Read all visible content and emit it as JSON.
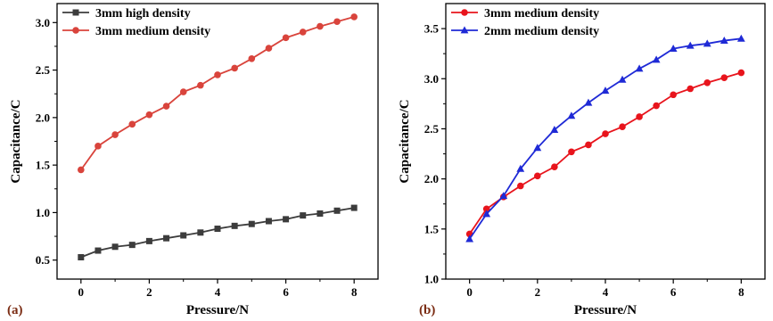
{
  "chart_data": [
    {
      "type": "line",
      "panel_label": "(a)",
      "xlabel": "Pressure/N",
      "ylabel": "Capacitance/C",
      "xlim": [
        -0.7,
        8.7
      ],
      "ylim": [
        0.3,
        3.2
      ],
      "xticks": [
        "0",
        "2",
        "4",
        "6",
        "8"
      ],
      "yticks": [
        "0.5",
        "1.0",
        "1.5",
        "2.0",
        "2.5",
        "3.0"
      ],
      "legend_position": "top-left",
      "x": [
        0,
        0.5,
        1,
        1.5,
        2,
        2.5,
        3,
        3.5,
        4,
        4.5,
        5,
        5.5,
        6,
        6.5,
        7,
        7.5,
        8
      ],
      "series": [
        {
          "name": "3mm high density",
          "color": "#3c3c3c",
          "marker": "square",
          "values": [
            0.53,
            0.6,
            0.64,
            0.66,
            0.7,
            0.73,
            0.76,
            0.79,
            0.83,
            0.86,
            0.88,
            0.91,
            0.93,
            0.97,
            0.99,
            1.02,
            1.05
          ]
        },
        {
          "name": "3mm medium density",
          "color": "#d9443c",
          "marker": "circle",
          "values": [
            1.45,
            1.7,
            1.82,
            1.93,
            2.03,
            2.12,
            2.27,
            2.34,
            2.45,
            2.52,
            2.62,
            2.73,
            2.84,
            2.9,
            2.96,
            3.01,
            3.06
          ]
        }
      ]
    },
    {
      "type": "line",
      "panel_label": "(b)",
      "xlabel": "Pressure/N",
      "ylabel": "Capacitance/C",
      "xlim": [
        -0.7,
        8.7
      ],
      "ylim": [
        1.0,
        3.75
      ],
      "xticks": [
        "0",
        "2",
        "4",
        "6",
        "8"
      ],
      "yticks": [
        "1.0",
        "1.5",
        "2.0",
        "2.5",
        "3.0",
        "3.5"
      ],
      "legend_position": "top-left",
      "x": [
        0,
        0.5,
        1,
        1.5,
        2,
        2.5,
        3,
        3.5,
        4,
        4.5,
        5,
        5.5,
        6,
        6.5,
        7,
        7.5,
        8
      ],
      "series": [
        {
          "name": "3mm medium density",
          "color": "#e8141c",
          "marker": "circle",
          "values": [
            1.45,
            1.7,
            1.82,
            1.93,
            2.03,
            2.12,
            2.27,
            2.34,
            2.45,
            2.52,
            2.62,
            2.73,
            2.84,
            2.9,
            2.96,
            3.01,
            3.06
          ]
        },
        {
          "name": "2mm medium density",
          "color": "#1f2ad6",
          "marker": "triangle",
          "values": [
            1.4,
            1.65,
            1.83,
            2.1,
            2.31,
            2.49,
            2.63,
            2.76,
            2.88,
            2.99,
            3.1,
            3.19,
            3.3,
            3.33,
            3.35,
            3.38,
            3.4
          ]
        }
      ]
    }
  ]
}
